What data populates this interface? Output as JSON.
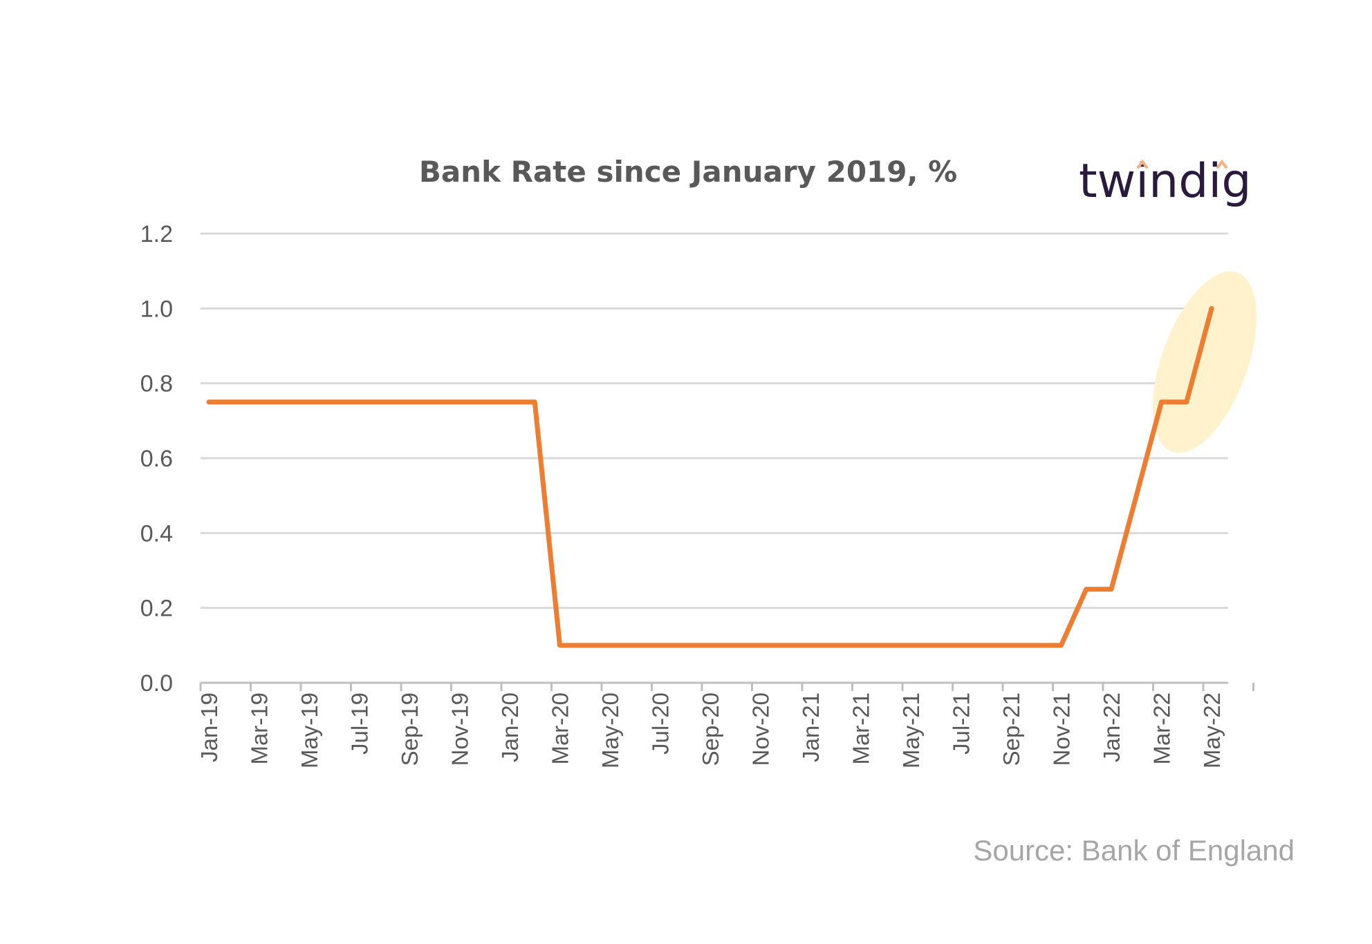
{
  "chart_data": {
    "type": "line",
    "title": "Bank Rate since January  2019, %",
    "xlabel": "",
    "ylabel": "",
    "ylim": [
      0,
      1.2
    ],
    "y_ticks": [
      "0.0",
      "0.2",
      "0.4",
      "0.6",
      "0.8",
      "1.0",
      "1.2"
    ],
    "x_tick_labels": [
      "Jan-19",
      "Mar-19",
      "May-19",
      "Jul-19",
      "Sep-19",
      "Nov-19",
      "Jan-20",
      "Mar-20",
      "May-20",
      "Jul-20",
      "Sep-20",
      "Nov-20",
      "Jan-21",
      "Mar-21",
      "May-21",
      "Jul-21",
      "Sep-21",
      "Nov-21",
      "Jan-22",
      "Mar-22",
      "May-22"
    ],
    "grid": true,
    "legend": "none",
    "series": [
      {
        "color": "#ED7D31",
        "x": [
          "Jan-19",
          "Feb-19",
          "Mar-19",
          "Apr-19",
          "May-19",
          "Jun-19",
          "Jul-19",
          "Aug-19",
          "Sep-19",
          "Oct-19",
          "Nov-19",
          "Dec-19",
          "Jan-20",
          "Feb-20",
          "Mar-20",
          "Apr-20",
          "May-20",
          "Jun-20",
          "Jul-20",
          "Aug-20",
          "Sep-20",
          "Oct-20",
          "Nov-20",
          "Dec-20",
          "Jan-21",
          "Feb-21",
          "Mar-21",
          "Apr-21",
          "May-21",
          "Jun-21",
          "Jul-21",
          "Aug-21",
          "Sep-21",
          "Oct-21",
          "Nov-21",
          "Dec-21",
          "Jan-22",
          "Feb-22",
          "Mar-22",
          "Apr-22",
          "May-22"
        ],
        "values": [
          0.75,
          0.75,
          0.75,
          0.75,
          0.75,
          0.75,
          0.75,
          0.75,
          0.75,
          0.75,
          0.75,
          0.75,
          0.75,
          0.75,
          0.1,
          0.1,
          0.1,
          0.1,
          0.1,
          0.1,
          0.1,
          0.1,
          0.1,
          0.1,
          0.1,
          0.1,
          0.1,
          0.1,
          0.1,
          0.1,
          0.1,
          0.1,
          0.1,
          0.1,
          0.1,
          0.25,
          0.25,
          0.5,
          0.75,
          0.75,
          1.0
        ]
      }
    ],
    "highlight": {
      "from": "Apr-22",
      "to": "May-22",
      "color": "#FFF2CC"
    }
  },
  "logo": {
    "text": "twindig",
    "color": "#2a1a3e",
    "accent_color": "#F4B183"
  },
  "source": "Source: Bank of England",
  "colors": {
    "line": "#ED7D31",
    "grid": "#D9D9D9",
    "axis": "#BFBFBF",
    "text": "#595959",
    "source": "#A6A6A6"
  }
}
